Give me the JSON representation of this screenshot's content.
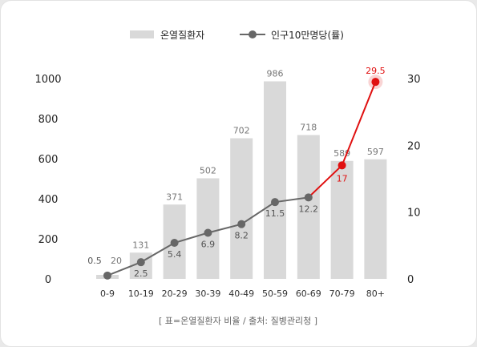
{
  "chart_data": {
    "type": "bar",
    "categories": [
      "0-9",
      "10-19",
      "20-29",
      "30-39",
      "40-49",
      "50-59",
      "60-69",
      "70-79",
      "80+"
    ],
    "series": [
      {
        "name": "온열질환자",
        "type": "bar",
        "axis": "left",
        "values": [
          20,
          131,
          371,
          502,
          702,
          986,
          718,
          589,
          597
        ],
        "labels": [
          "20",
          "131",
          "371",
          "502",
          "702",
          "986",
          "718",
          "589",
          "597"
        ]
      },
      {
        "name": "인구10만명당(률)",
        "type": "line",
        "axis": "right",
        "values": [
          0.5,
          2.5,
          5.4,
          6.9,
          8.2,
          11.5,
          12.2,
          17,
          29.5
        ],
        "labels": [
          "0.5",
          "2.5",
          "5.4",
          "6.9",
          "8.2",
          "11.5",
          "12.2",
          "17",
          "29.5"
        ],
        "highlight_from_index": 6
      }
    ],
    "y_left": {
      "ticks": [
        "0",
        "200",
        "400",
        "600",
        "800",
        "1000"
      ],
      "min": 0,
      "max": 1000
    },
    "y_right": {
      "ticks": [
        "0",
        "10",
        "20",
        "30"
      ],
      "min": 0,
      "max": 30
    },
    "legend_position": "top-center",
    "grid": false,
    "colors": {
      "bar": "#d9d9d9",
      "line": "#676767",
      "highlight": "#e01010"
    }
  },
  "footnote": "[ 표=온열질환자 비율 / 출처: 질병관리청 ]"
}
